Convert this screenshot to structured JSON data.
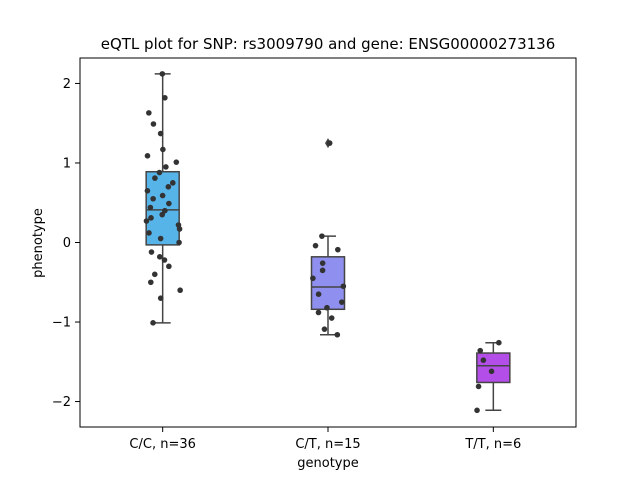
{
  "chart_data": {
    "type": "box",
    "title": "eQTL plot for SNP: rs3009790 and gene: ENSG00000273136",
    "xlabel": "genotype",
    "ylabel": "phenotype",
    "categories": [
      "C/C, n=36",
      "C/T, n=15",
      "T/T, n=6"
    ],
    "ylim": [
      -2.32,
      2.32
    ],
    "yticks": [
      -2,
      -1,
      0,
      1,
      2
    ],
    "colors": [
      "#56b4e9",
      "#8f8ff0",
      "#b44ee8"
    ],
    "boxes": [
      {
        "name": "C/C, n=36",
        "whisker_low": -1.01,
        "q1": -0.03,
        "median": 0.41,
        "q3": 0.89,
        "whisker_high": 2.12,
        "outliers": []
      },
      {
        "name": "C/T, n=15",
        "whisker_low": -1.16,
        "q1": -0.84,
        "median": -0.56,
        "q3": -0.18,
        "whisker_high": 0.08,
        "outliers": [
          1.25
        ]
      },
      {
        "name": "T/T, n=6",
        "whisker_low": -2.11,
        "q1": -1.76,
        "median": -1.55,
        "q3": -1.39,
        "whisker_high": -1.26,
        "outliers": []
      }
    ],
    "points": [
      [
        2.12,
        1.82,
        1.63,
        1.49,
        1.37,
        1.17,
        1.09,
        1.01,
        0.95,
        0.88,
        0.81,
        0.75,
        0.7,
        0.65,
        0.59,
        0.55,
        0.49,
        0.44,
        0.4,
        0.35,
        0.31,
        0.27,
        0.22,
        0.17,
        0.12,
        0.05,
        0.0,
        -0.12,
        -0.18,
        -0.22,
        -0.3,
        -0.4,
        -0.5,
        -0.6,
        -0.7,
        -1.01
      ],
      [
        1.25,
        0.08,
        -0.04,
        -0.09,
        -0.26,
        -0.35,
        -0.45,
        -0.55,
        -0.65,
        -0.75,
        -0.82,
        -0.88,
        -0.95,
        -1.09,
        -1.16
      ],
      [
        -1.26,
        -1.36,
        -1.48,
        -1.62,
        -1.81,
        -2.11
      ]
    ]
  }
}
